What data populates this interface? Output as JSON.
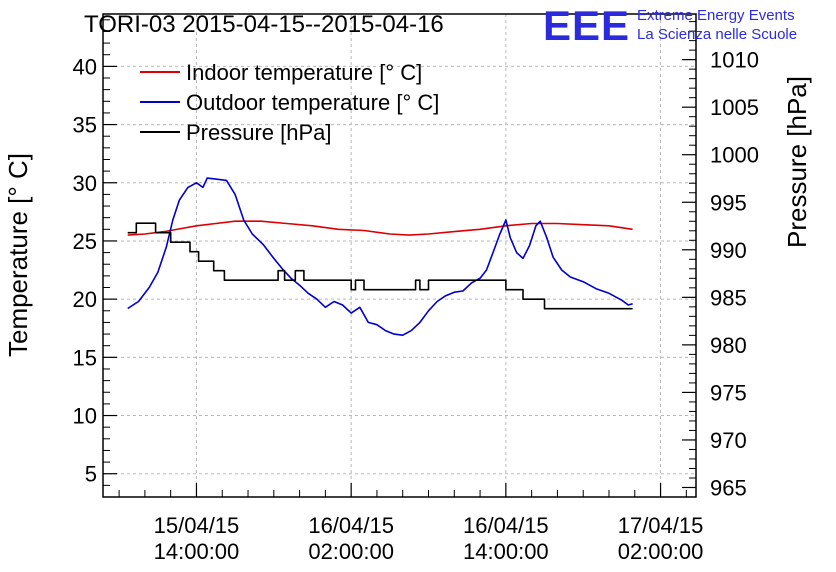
{
  "header": {
    "title": "TORI-03 2015-04-15--2015-04-16",
    "logo_text": "EEE",
    "project_line1": "Extreme Energy Events",
    "project_line2": "La Scienza nelle Scuole"
  },
  "colors": {
    "indoor": "#dd0000",
    "outdoor": "#0000cc",
    "pressure": "#000000",
    "brand": "#2b2bdd",
    "grid": "#b8b8b8"
  },
  "chart_data": {
    "type": "line",
    "title": "TORI-03 2015-04-15--2015-04-16",
    "ylabel": "Temperature [° C]",
    "y2label": "Pressure [hPa]",
    "grid": true,
    "legend_position": "top-left",
    "xlim": [
      "2015-04-15 06:45",
      "2015-04-17 04:45"
    ],
    "ylim": [
      3,
      44.5
    ],
    "y2lim": [
      964.0,
      1014.8
    ],
    "xticks": [
      {
        "t": "2015-04-15 14:00",
        "line1": "15/04/15",
        "line2": "14:00:00"
      },
      {
        "t": "2015-04-16 02:00",
        "line1": "16/04/15",
        "line2": "02:00:00"
      },
      {
        "t": "2015-04-16 14:00",
        "line1": "16/04/15",
        "line2": "14:00:00"
      },
      {
        "t": "2015-04-17 02:00",
        "line1": "17/04/15",
        "line2": "02:00:00"
      }
    ],
    "yticks": [
      5,
      10,
      15,
      20,
      25,
      30,
      35,
      40
    ],
    "y2ticks": [
      965,
      970,
      975,
      980,
      985,
      990,
      995,
      1000,
      1005,
      1010
    ],
    "series": [
      {
        "name": "Indoor temperature [° C]",
        "axis": "left",
        "color": "#dd0000",
        "points": [
          [
            "2015-04-15 08:40",
            25.5
          ],
          [
            "2015-04-15 10:00",
            25.6
          ],
          [
            "2015-04-15 11:30",
            25.8
          ],
          [
            "2015-04-15 13:00",
            26.1
          ],
          [
            "2015-04-15 14:00",
            26.3
          ],
          [
            "2015-04-15 15:30",
            26.5
          ],
          [
            "2015-04-15 17:00",
            26.7
          ],
          [
            "2015-04-15 19:00",
            26.7
          ],
          [
            "2015-04-15 21:00",
            26.5
          ],
          [
            "2015-04-15 23:00",
            26.3
          ],
          [
            "2015-04-16 01:00",
            26.0
          ],
          [
            "2015-04-16 03:00",
            25.9
          ],
          [
            "2015-04-16 05:00",
            25.6
          ],
          [
            "2015-04-16 06:30",
            25.5
          ],
          [
            "2015-04-16 08:00",
            25.6
          ],
          [
            "2015-04-16 10:00",
            25.8
          ],
          [
            "2015-04-16 12:00",
            26.0
          ],
          [
            "2015-04-16 14:00",
            26.3
          ],
          [
            "2015-04-16 16:00",
            26.5
          ],
          [
            "2015-04-16 18:00",
            26.5
          ],
          [
            "2015-04-16 20:00",
            26.4
          ],
          [
            "2015-04-16 22:00",
            26.3
          ],
          [
            "2015-04-16 23:50",
            26.0
          ]
        ]
      },
      {
        "name": "Outdoor temperature [° C]",
        "axis": "left",
        "color": "#0000cc",
        "points": [
          [
            "2015-04-15 08:40",
            19.2
          ],
          [
            "2015-04-15 09:30",
            19.8
          ],
          [
            "2015-04-15 10:20",
            21.0
          ],
          [
            "2015-04-15 11:00",
            22.3
          ],
          [
            "2015-04-15 11:40",
            24.5
          ],
          [
            "2015-04-15 12:10",
            26.8
          ],
          [
            "2015-04-15 12:40",
            28.5
          ],
          [
            "2015-04-15 13:20",
            29.6
          ],
          [
            "2015-04-15 14:00",
            30.0
          ],
          [
            "2015-04-15 14:30",
            29.6
          ],
          [
            "2015-04-15 14:50",
            30.4
          ],
          [
            "2015-04-15 15:40",
            30.3
          ],
          [
            "2015-04-15 16:20",
            30.2
          ],
          [
            "2015-04-15 17:00",
            29.0
          ],
          [
            "2015-04-15 17:40",
            26.8
          ],
          [
            "2015-04-15 18:20",
            25.6
          ],
          [
            "2015-04-15 19:10",
            24.7
          ],
          [
            "2015-04-15 20:00",
            23.5
          ],
          [
            "2015-04-15 20:40",
            22.6
          ],
          [
            "2015-04-15 21:20",
            21.8
          ],
          [
            "2015-04-15 22:00",
            21.2
          ],
          [
            "2015-04-15 22:40",
            20.5
          ],
          [
            "2015-04-15 23:20",
            20.0
          ],
          [
            "2015-04-16 00:00",
            19.3
          ],
          [
            "2015-04-16 00:40",
            19.8
          ],
          [
            "2015-04-16 01:20",
            19.5
          ],
          [
            "2015-04-16 02:00",
            18.8
          ],
          [
            "2015-04-16 02:40",
            19.3
          ],
          [
            "2015-04-16 03:20",
            18.0
          ],
          [
            "2015-04-16 04:00",
            17.8
          ],
          [
            "2015-04-16 04:40",
            17.3
          ],
          [
            "2015-04-16 05:20",
            17.0
          ],
          [
            "2015-04-16 06:00",
            16.9
          ],
          [
            "2015-04-16 06:40",
            17.3
          ],
          [
            "2015-04-16 07:20",
            18.0
          ],
          [
            "2015-04-16 08:00",
            19.0
          ],
          [
            "2015-04-16 08:40",
            19.8
          ],
          [
            "2015-04-16 09:20",
            20.3
          ],
          [
            "2015-04-16 10:00",
            20.6
          ],
          [
            "2015-04-16 10:40",
            20.7
          ],
          [
            "2015-04-16 11:20",
            21.4
          ],
          [
            "2015-04-16 12:00",
            21.8
          ],
          [
            "2015-04-16 12:30",
            22.5
          ],
          [
            "2015-04-16 13:00",
            24.0
          ],
          [
            "2015-04-16 13:30",
            25.5
          ],
          [
            "2015-04-16 14:00",
            26.8
          ],
          [
            "2015-04-16 14:20",
            25.3
          ],
          [
            "2015-04-16 14:50",
            24.0
          ],
          [
            "2015-04-16 15:20",
            23.5
          ],
          [
            "2015-04-16 15:50",
            24.6
          ],
          [
            "2015-04-16 16:20",
            26.3
          ],
          [
            "2015-04-16 16:40",
            26.7
          ],
          [
            "2015-04-16 17:10",
            25.3
          ],
          [
            "2015-04-16 17:40",
            23.6
          ],
          [
            "2015-04-16 18:20",
            22.5
          ],
          [
            "2015-04-16 19:00",
            21.9
          ],
          [
            "2015-04-16 20:00",
            21.5
          ],
          [
            "2015-04-16 21:00",
            20.9
          ],
          [
            "2015-04-16 22:00",
            20.5
          ],
          [
            "2015-04-16 23:00",
            19.9
          ],
          [
            "2015-04-16 23:30",
            19.5
          ],
          [
            "2015-04-16 23:50",
            19.6
          ]
        ]
      },
      {
        "name": "Pressure [hPa]",
        "axis": "right",
        "color": "#000000",
        "step": true,
        "points": [
          [
            "2015-04-15 08:40",
            991.8
          ],
          [
            "2015-04-15 09:20",
            992.8
          ],
          [
            "2015-04-15 10:50",
            991.8
          ],
          [
            "2015-04-15 12:00",
            990.8
          ],
          [
            "2015-04-15 13:30",
            989.8
          ],
          [
            "2015-04-15 14:10",
            988.8
          ],
          [
            "2015-04-15 15:20",
            987.8
          ],
          [
            "2015-04-15 16:10",
            986.8
          ],
          [
            "2015-04-15 20:20",
            987.8
          ],
          [
            "2015-04-15 20:50",
            986.8
          ],
          [
            "2015-04-15 21:40",
            987.8
          ],
          [
            "2015-04-15 22:20",
            986.8
          ],
          [
            "2015-04-16 02:00",
            985.8
          ],
          [
            "2015-04-16 02:20",
            986.8
          ],
          [
            "2015-04-16 03:00",
            985.8
          ],
          [
            "2015-04-16 07:00",
            986.8
          ],
          [
            "2015-04-16 07:20",
            985.8
          ],
          [
            "2015-04-16 08:00",
            986.8
          ],
          [
            "2015-04-16 14:00",
            985.8
          ],
          [
            "2015-04-16 15:20",
            984.8
          ],
          [
            "2015-04-16 17:00",
            983.8
          ],
          [
            "2015-04-16 23:50",
            983.8
          ]
        ]
      }
    ]
  }
}
